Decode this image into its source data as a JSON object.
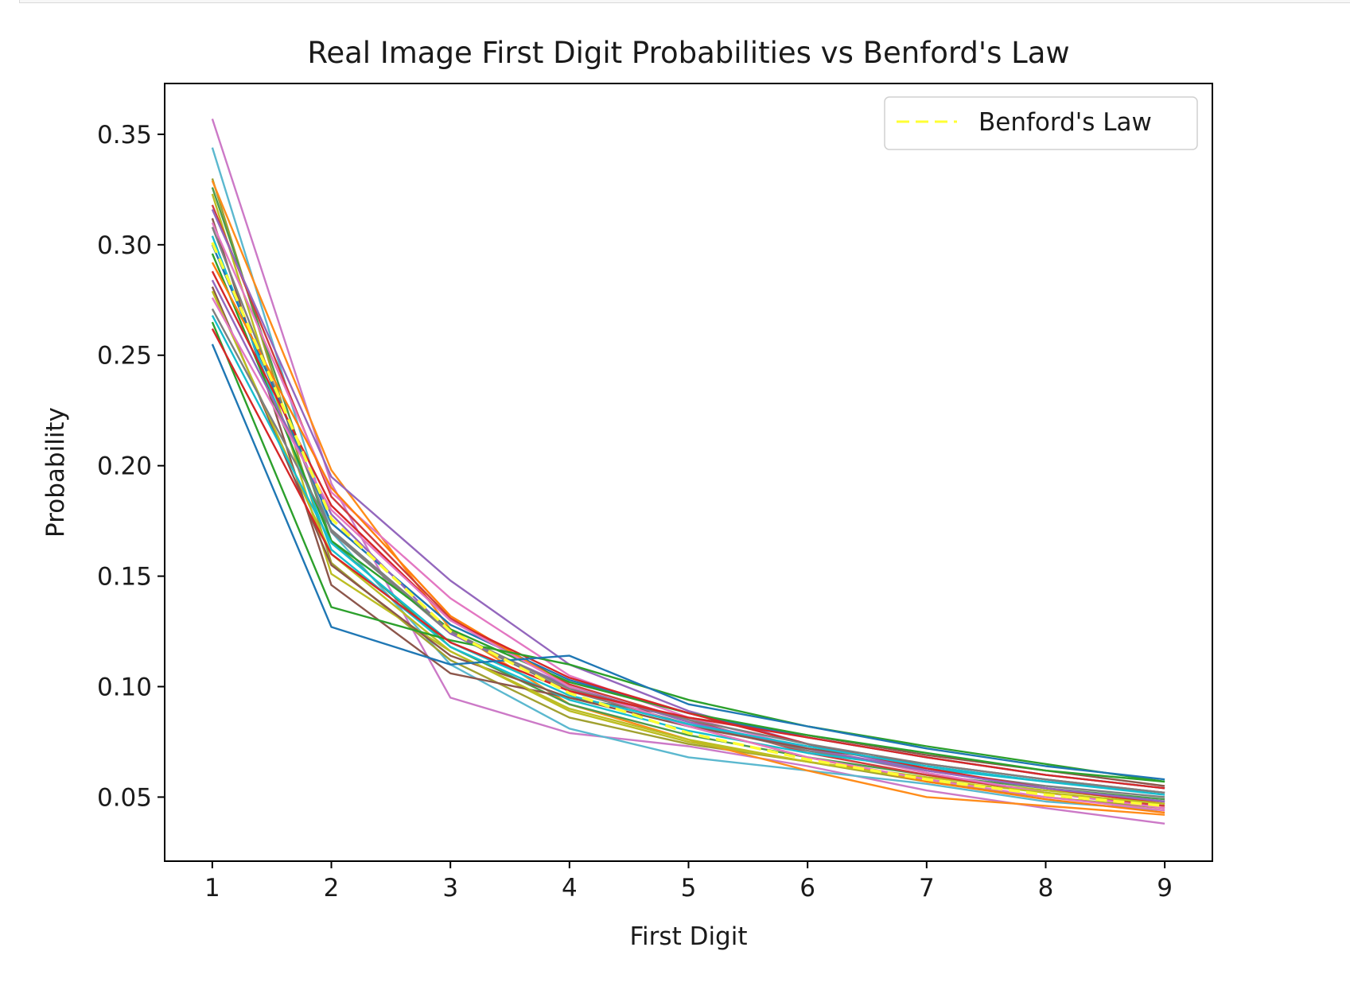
{
  "chart_data": {
    "type": "line",
    "title": "Real Image First Digit Probabilities vs Benford's Law",
    "xlabel": "First Digit",
    "ylabel": "Probability",
    "x": [
      1,
      2,
      3,
      4,
      5,
      6,
      7,
      8,
      9
    ],
    "xticks": [
      "1",
      "2",
      "3",
      "4",
      "5",
      "6",
      "7",
      "8",
      "9"
    ],
    "yticks": [
      "0.05",
      "0.10",
      "0.15",
      "0.20",
      "0.25",
      "0.30",
      "0.35"
    ],
    "xlim": [
      0.6,
      9.4
    ],
    "ylim": [
      0.021,
      0.373
    ],
    "grid": false,
    "legend_position": "top-right",
    "benford": {
      "name": "Benford's Law",
      "color": "#ffff33",
      "values": [
        0.301,
        0.176,
        0.125,
        0.097,
        0.079,
        0.067,
        0.058,
        0.051,
        0.046
      ]
    },
    "series": [
      {
        "color": "#cc79c7",
        "values": [
          0.357,
          0.192,
          0.095,
          0.079,
          0.073,
          0.064,
          0.053,
          0.045,
          0.038
        ]
      },
      {
        "color": "#5bb8cf",
        "values": [
          0.344,
          0.17,
          0.11,
          0.081,
          0.068,
          0.062,
          0.056,
          0.048,
          0.044
        ]
      },
      {
        "color": "#a0a030",
        "values": [
          0.33,
          0.156,
          0.112,
          0.086,
          0.074,
          0.066,
          0.057,
          0.05,
          0.045
        ]
      },
      {
        "color": "#ff8c1a",
        "values": [
          0.329,
          0.198,
          0.126,
          0.092,
          0.076,
          0.062,
          0.05,
          0.046,
          0.042
        ]
      },
      {
        "color": "#4d9a4d",
        "values": [
          0.326,
          0.166,
          0.118,
          0.092,
          0.078,
          0.068,
          0.06,
          0.054,
          0.049
        ]
      },
      {
        "color": "#bcbd22",
        "values": [
          0.323,
          0.151,
          0.116,
          0.089,
          0.075,
          0.066,
          0.059,
          0.053,
          0.048
        ]
      },
      {
        "color": "#d03c3c",
        "values": [
          0.318,
          0.186,
          0.131,
          0.101,
          0.085,
          0.07,
          0.06,
          0.052,
          0.046
        ]
      },
      {
        "color": "#9467bd",
        "values": [
          0.316,
          0.195,
          0.148,
          0.11,
          0.089,
          0.074,
          0.062,
          0.054,
          0.048
        ]
      },
      {
        "color": "#8c564b",
        "values": [
          0.312,
          0.146,
          0.106,
          0.095,
          0.086,
          0.078,
          0.069,
          0.062,
          0.055
        ]
      },
      {
        "color": "#e377c2",
        "values": [
          0.31,
          0.188,
          0.14,
          0.105,
          0.086,
          0.072,
          0.061,
          0.052,
          0.045
        ]
      },
      {
        "color": "#7f7f7f",
        "values": [
          0.308,
          0.17,
          0.124,
          0.098,
          0.083,
          0.071,
          0.062,
          0.055,
          0.05
        ]
      },
      {
        "color": "#17becf",
        "values": [
          0.304,
          0.162,
          0.118,
          0.094,
          0.08,
          0.07,
          0.063,
          0.057,
          0.052
        ]
      },
      {
        "color": "#1f77b4",
        "values": [
          0.3,
          0.174,
          0.128,
          0.103,
          0.088,
          0.077,
          0.068,
          0.06,
          0.054
        ]
      },
      {
        "color": "#2ca02c",
        "values": [
          0.296,
          0.166,
          0.126,
          0.102,
          0.088,
          0.078,
          0.07,
          0.062,
          0.057
        ]
      },
      {
        "color": "#ff7f0e",
        "values": [
          0.292,
          0.19,
          0.132,
          0.1,
          0.082,
          0.068,
          0.057,
          0.049,
          0.043
        ]
      },
      {
        "color": "#d62728",
        "values": [
          0.288,
          0.182,
          0.13,
          0.104,
          0.088,
          0.074,
          0.063,
          0.054,
          0.047
        ]
      },
      {
        "color": "#9467bd",
        "values": [
          0.284,
          0.178,
          0.124,
          0.1,
          0.084,
          0.072,
          0.062,
          0.054,
          0.048
        ]
      },
      {
        "color": "#8c564b",
        "values": [
          0.281,
          0.155,
          0.114,
          0.095,
          0.082,
          0.072,
          0.065,
          0.058,
          0.052
        ]
      },
      {
        "color": "#bcbd22",
        "values": [
          0.279,
          0.16,
          0.116,
          0.09,
          0.076,
          0.066,
          0.058,
          0.052,
          0.047
        ]
      },
      {
        "color": "#e377c2",
        "values": [
          0.276,
          0.18,
          0.13,
          0.1,
          0.082,
          0.068,
          0.058,
          0.05,
          0.044
        ]
      },
      {
        "color": "#7f7f7f",
        "values": [
          0.271,
          0.171,
          0.125,
          0.099,
          0.085,
          0.074,
          0.065,
          0.058,
          0.052
        ]
      },
      {
        "color": "#17becf",
        "values": [
          0.268,
          0.165,
          0.12,
          0.096,
          0.083,
          0.073,
          0.064,
          0.057,
          0.051
        ]
      },
      {
        "color": "#2ca02c",
        "values": [
          0.265,
          0.136,
          0.121,
          0.11,
          0.094,
          0.082,
          0.073,
          0.065,
          0.057
        ]
      },
      {
        "color": "#d62728",
        "values": [
          0.262,
          0.16,
          0.12,
          0.098,
          0.086,
          0.077,
          0.068,
          0.06,
          0.054
        ]
      },
      {
        "color": "#1f77b4",
        "values": [
          0.255,
          0.127,
          0.11,
          0.114,
          0.092,
          0.082,
          0.072,
          0.064,
          0.058
        ]
      }
    ]
  }
}
